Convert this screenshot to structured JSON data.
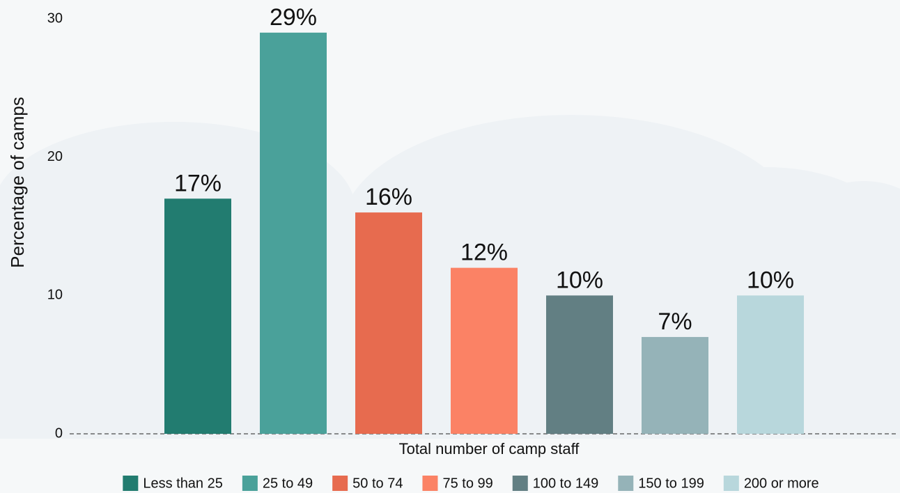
{
  "chart_data": {
    "type": "bar",
    "categories": [
      "Less than 25",
      "25 to 49",
      "50 to 74",
      "75 to 99",
      "100 to 149",
      "150 to 199",
      "200 or more"
    ],
    "values": [
      17,
      29,
      16,
      12,
      10,
      7,
      10
    ],
    "value_labels": [
      "17%",
      "29%",
      "16%",
      "12%",
      "10%",
      "7%",
      "10%"
    ],
    "colors": [
      "#227c70",
      "#4aa19a",
      "#e76b4f",
      "#fb8265",
      "#627f83",
      "#95b3b8",
      "#b8d7dc"
    ],
    "x_label": "Total number of camp staff",
    "y_label": "Percentage of camps",
    "ylim": [
      0,
      30
    ],
    "yticks": [
      0,
      10,
      20,
      30
    ],
    "grid": false,
    "legend": "bottom"
  }
}
